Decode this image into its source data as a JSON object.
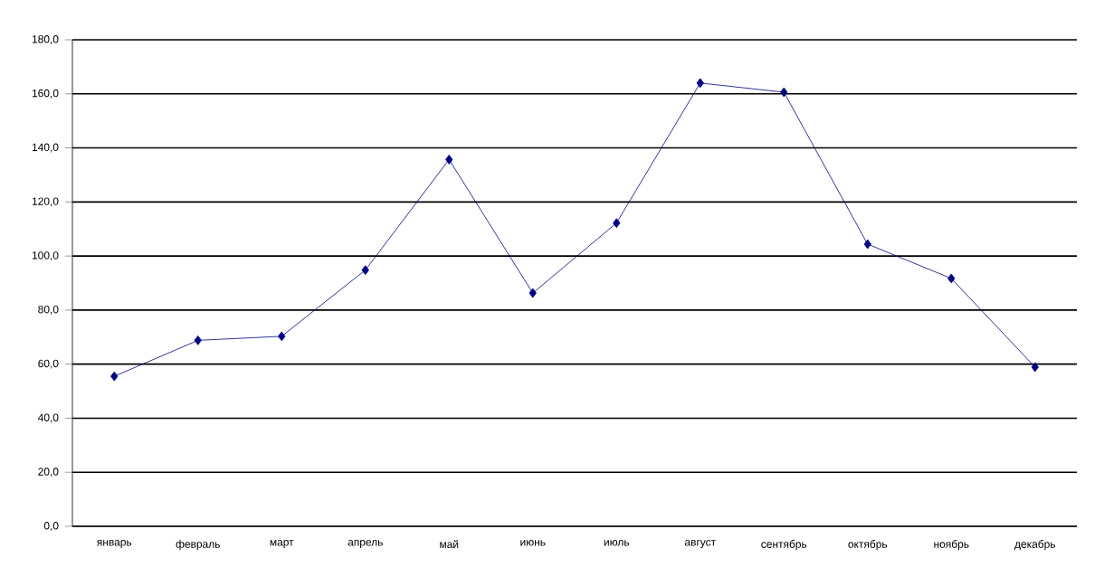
{
  "chart_data": {
    "type": "line",
    "categories": [
      "январь",
      "февраль",
      "март",
      "апрель",
      "май",
      "июнь",
      "июль",
      "август",
      "сентябрь",
      "октябрь",
      "ноябрь",
      "декабрь"
    ],
    "series": [
      {
        "color": "#000080",
        "values": [
          55.5,
          68.8,
          70.3,
          94.8,
          135.7,
          86.3,
          112.2,
          164.0,
          160.6,
          104.4,
          91.7,
          58.9
        ]
      }
    ],
    "ylim": [
      0,
      180
    ],
    "yticks": [
      {
        "value": 0,
        "label": "0,0"
      },
      {
        "value": 20,
        "label": "20,0"
      },
      {
        "value": 40,
        "label": "40,0"
      },
      {
        "value": 60,
        "label": "60,0"
      },
      {
        "value": 80,
        "label": "80,0"
      },
      {
        "value": 100,
        "label": "100,0"
      },
      {
        "value": 120,
        "label": "120,0"
      },
      {
        "value": 140,
        "label": "140,0"
      },
      {
        "value": 160,
        "label": "160,0"
      },
      {
        "value": 180,
        "label": "180,0"
      }
    ],
    "grid": "y",
    "marker": "diamond",
    "line_style": "solid"
  }
}
